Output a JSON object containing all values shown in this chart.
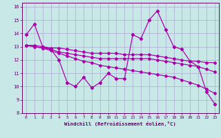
{
  "xlabel": "Windchill (Refroidissement éolien,°C)",
  "xlim": [
    -0.5,
    23.5
  ],
  "ylim": [
    8,
    16.3
  ],
  "yticks": [
    8,
    9,
    10,
    11,
    12,
    13,
    14,
    15,
    16
  ],
  "xticks": [
    0,
    1,
    2,
    3,
    4,
    5,
    6,
    7,
    8,
    9,
    10,
    11,
    12,
    13,
    14,
    15,
    16,
    17,
    18,
    19,
    20,
    21,
    22,
    23
  ],
  "background_color": "#c8e8e8",
  "line_color": "#aa00aa",
  "grid_color": "#aaaacc",
  "line1_x": [
    0,
    1,
    2,
    3,
    4,
    5,
    6,
    7,
    8,
    9,
    10,
    11,
    12,
    13,
    14,
    15,
    16,
    17,
    18,
    19,
    20,
    21,
    22,
    23
  ],
  "line1_y": [
    13.9,
    14.7,
    13.0,
    12.8,
    12.0,
    10.3,
    10.0,
    10.7,
    9.9,
    10.3,
    11.0,
    10.6,
    10.6,
    13.9,
    13.6,
    15.0,
    15.7,
    14.3,
    13.0,
    12.8,
    11.9,
    11.5,
    9.6,
    8.7
  ],
  "line2_x": [
    0,
    1,
    2,
    3,
    4,
    5,
    6,
    7,
    8,
    9,
    10,
    11,
    12,
    13,
    14,
    15,
    16,
    17,
    18,
    19,
    20,
    21,
    22,
    23
  ],
  "line2_y": [
    13.1,
    13.0,
    12.9,
    12.7,
    12.5,
    12.3,
    12.1,
    11.9,
    11.8,
    11.6,
    11.5,
    11.4,
    11.3,
    11.2,
    11.1,
    11.0,
    10.9,
    10.8,
    10.7,
    10.5,
    10.3,
    10.1,
    9.8,
    9.5
  ],
  "line3_x": [
    0,
    1,
    2,
    3,
    4,
    5,
    6,
    7,
    8,
    9,
    10,
    11,
    12,
    13,
    14,
    15,
    16,
    17,
    18,
    19,
    20,
    21,
    22,
    23
  ],
  "line3_y": [
    13.1,
    13.0,
    12.9,
    12.8,
    12.6,
    12.5,
    12.4,
    12.3,
    12.2,
    12.1,
    12.1,
    12.1,
    12.1,
    12.1,
    12.1,
    12.1,
    12.0,
    11.9,
    11.8,
    11.7,
    11.6,
    11.5,
    11.3,
    11.1
  ],
  "line4_x": [
    0,
    1,
    2,
    3,
    4,
    5,
    6,
    7,
    8,
    9,
    10,
    11,
    12,
    13,
    14,
    15,
    16,
    17,
    18,
    19,
    20,
    21,
    22,
    23
  ],
  "line4_y": [
    13.1,
    13.1,
    13.0,
    12.9,
    12.9,
    12.8,
    12.7,
    12.6,
    12.5,
    12.5,
    12.5,
    12.5,
    12.4,
    12.4,
    12.4,
    12.4,
    12.3,
    12.2,
    12.1,
    12.0,
    11.9,
    11.9,
    11.8,
    11.8
  ]
}
